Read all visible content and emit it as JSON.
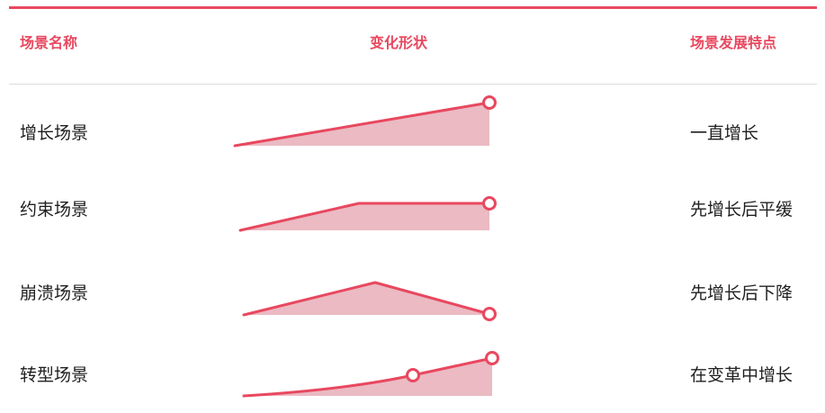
{
  "colors": {
    "accent": "#e8485f",
    "fill": "#ebbac3",
    "header_rule": "#dcdcdc",
    "text": "#1f1f1f"
  },
  "header": {
    "name_label": "场景名称",
    "shape_label": "变化形状",
    "trait_label": "场景发展特点"
  },
  "rows": [
    {
      "name": "增长场景",
      "trait": "一直增长",
      "shape": "rise-linear"
    },
    {
      "name": "约束场景",
      "trait": "先增长后平缓",
      "shape": "rise-then-flat"
    },
    {
      "name": "崩溃场景",
      "trait": "先增长后下降",
      "shape": "rise-then-fall"
    },
    {
      "name": "转型场景",
      "trait": "在变革中增长",
      "shape": "slow-then-accelerate"
    }
  ]
}
